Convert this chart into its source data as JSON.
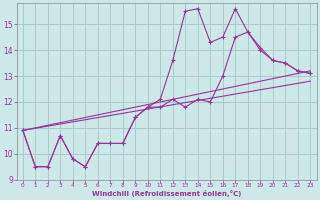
{
  "bg_color": "#cce8e8",
  "grid_color": "#aacaca",
  "line_color": "#993399",
  "xlabel": "Windchill (Refroidissement éolien,°C)",
  "xlim": [
    -0.5,
    23.5
  ],
  "ylim": [
    9.0,
    15.8
  ],
  "yticks": [
    9,
    10,
    11,
    12,
    13,
    14,
    15
  ],
  "xticks": [
    0,
    1,
    2,
    3,
    4,
    5,
    6,
    7,
    8,
    9,
    10,
    11,
    12,
    13,
    14,
    15,
    16,
    17,
    18,
    19,
    20,
    21,
    22,
    23
  ],
  "line1_x": [
    0,
    1,
    2,
    3,
    4,
    5,
    6,
    7,
    8,
    9,
    10,
    11,
    12,
    13,
    14,
    15,
    16,
    17,
    18,
    19,
    20,
    21,
    22,
    23
  ],
  "line1_y": [
    10.9,
    9.5,
    9.5,
    10.7,
    9.8,
    9.5,
    10.4,
    10.4,
    10.4,
    11.4,
    11.8,
    12.1,
    13.6,
    15.5,
    15.6,
    14.3,
    14.5,
    15.6,
    14.7,
    14.1,
    13.6,
    13.5,
    13.2,
    13.1
  ],
  "line2_x": [
    0,
    1,
    2,
    3,
    4,
    5,
    6,
    7,
    8,
    9,
    10,
    11,
    12,
    13,
    14,
    15,
    16,
    17,
    18,
    19,
    20,
    21,
    22,
    23
  ],
  "line2_y": [
    10.9,
    9.5,
    9.5,
    10.7,
    9.8,
    9.5,
    10.4,
    10.4,
    10.4,
    11.4,
    11.8,
    11.8,
    12.1,
    11.8,
    12.1,
    12.0,
    13.0,
    14.5,
    14.7,
    14.0,
    13.6,
    13.5,
    13.2,
    13.1
  ],
  "trend1_x": [
    0,
    23
  ],
  "trend1_y": [
    10.9,
    12.8
  ],
  "trend2_x": [
    0,
    23
  ],
  "trend2_y": [
    10.9,
    13.2
  ]
}
